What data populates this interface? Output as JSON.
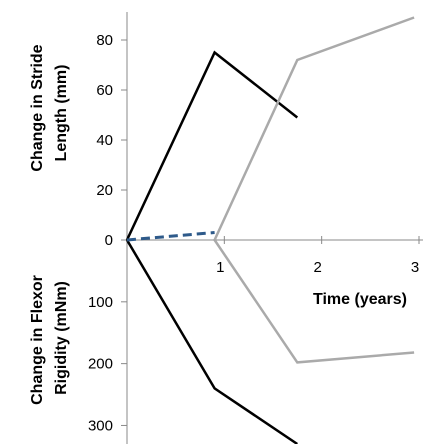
{
  "chart_data": {
    "type": "line",
    "x_axis": {
      "title": "Time (years)",
      "ticks": [
        "1",
        "2",
        "3"
      ],
      "range": [
        0,
        3
      ]
    },
    "stride_panel": {
      "ylabel_line1": "Change in Stride",
      "ylabel_line2": "Length (mm)",
      "ylim": [
        0,
        90
      ],
      "tick_values": [
        0,
        20,
        40,
        60,
        80
      ],
      "tick_labels": [
        "0",
        "20",
        "40",
        "60",
        "80"
      ],
      "series": [
        {
          "color": "#000000",
          "dash": "solid",
          "points": [
            [
              0,
              0
            ],
            [
              0.9,
              75
            ],
            [
              1.75,
              49
            ]
          ]
        },
        {
          "color": "#aaaaaa",
          "dash": "solid",
          "points": [
            [
              0.9,
              0
            ],
            [
              1.75,
              72
            ],
            [
              2.95,
              89
            ]
          ]
        },
        {
          "color": "#2e5a8a",
          "dash": "dashed",
          "points": [
            [
              0,
              0
            ],
            [
              0.9,
              3
            ]
          ]
        }
      ]
    },
    "rigidity_panel": {
      "ylabel_line1": "Change in Flexor",
      "ylabel_line2": "Rigidity (mNm)",
      "ylim": [
        0,
        330
      ],
      "tick_values": [
        100,
        200,
        300
      ],
      "tick_labels": [
        "100",
        "200",
        "300"
      ],
      "series": [
        {
          "color": "#000000",
          "dash": "solid",
          "points": [
            [
              0,
              0
            ],
            [
              0.9,
              240
            ],
            [
              1.75,
              330
            ]
          ]
        },
        {
          "color": "#aaaaaa",
          "dash": "solid",
          "points": [
            [
              0.9,
              0
            ],
            [
              1.75,
              198
            ],
            [
              2.95,
              182
            ]
          ]
        }
      ]
    }
  }
}
